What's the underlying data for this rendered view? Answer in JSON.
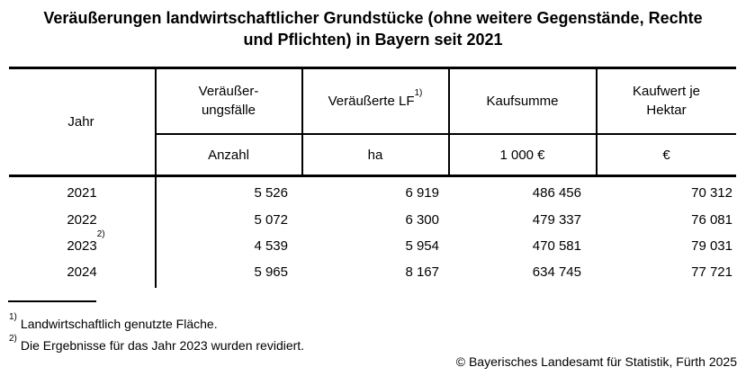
{
  "title": {
    "line1": "Veräußerungen landwirtschaftlicher Grundstücke (ohne weitere Gegenstände, Rechte",
    "line2": "und Pflichten) in Bayern seit 2021"
  },
  "table": {
    "jahr_header": "Jahr",
    "col2": {
      "line1": "Veräußer-",
      "line2": "ungsfälle",
      "unit": "Anzahl"
    },
    "col3": {
      "label": "Veräußerte LF",
      "sup": "1)",
      "unit": "ha"
    },
    "col4": {
      "label": "Kaufsumme",
      "unit": "1 000 €"
    },
    "col5": {
      "line1": "Kaufwert je",
      "line2": "Hektar",
      "unit": "€"
    },
    "rows": [
      {
        "year": "2021",
        "year_sup": "",
        "faelle": "5 526",
        "lf": "6 919",
        "kaufsumme": "486 456",
        "kaufwert_ha": "70 312"
      },
      {
        "year": "2022",
        "year_sup": "",
        "faelle": "5 072",
        "lf": "6 300",
        "kaufsumme": "479 337",
        "kaufwert_ha": "76 081"
      },
      {
        "year": "2023",
        "year_sup": "2)",
        "faelle": "4 539",
        "lf": "5 954",
        "kaufsumme": "470 581",
        "kaufwert_ha": "79 031"
      },
      {
        "year": "2024",
        "year_sup": "",
        "faelle": "5 965",
        "lf": "8 167",
        "kaufsumme": "634 745",
        "kaufwert_ha": "77 721"
      }
    ]
  },
  "footnotes": [
    {
      "marker": "1)",
      "text": "Landwirtschaftlich genutzte Fläche."
    },
    {
      "marker": "2)",
      "text": "Die Ergebnisse für das Jahr 2023 wurden revidiert."
    }
  ],
  "copyright": "© Bayerisches Landesamt für Statistik, Fürth 2025"
}
